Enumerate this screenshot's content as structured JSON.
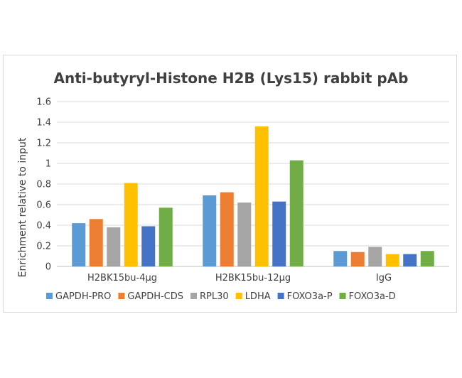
{
  "chart_data": {
    "type": "bar",
    "title": "Anti-butyryl-Histone H2B (Lys15) rabbit pAb",
    "xlabel": "",
    "ylabel": "Enrichment relative to input",
    "ylim": [
      0,
      1.6
    ],
    "yticks": [
      "0",
      "0.2",
      "0.4",
      "0.6",
      "0.8",
      "1",
      "1.2",
      "1.4",
      "1.6"
    ],
    "grid": true,
    "legend_position": "bottom",
    "categories": [
      "H2BK15bu-4μg",
      "H2BK15bu-12μg",
      "IgG"
    ],
    "series": [
      {
        "name": "GAPDH-PRO",
        "color": "#5B9BD5",
        "values": [
          0.42,
          0.69,
          0.15
        ]
      },
      {
        "name": "GAPDH-CDS",
        "color": "#ED7D31",
        "values": [
          0.46,
          0.72,
          0.14
        ]
      },
      {
        "name": "RPL30",
        "color": "#A5A5A5",
        "values": [
          0.38,
          0.62,
          0.19
        ]
      },
      {
        "name": "LDHA",
        "color": "#FFC000",
        "values": [
          0.81,
          1.36,
          0.12
        ]
      },
      {
        "name": "FOXO3a-P",
        "color": "#4472C4",
        "values": [
          0.39,
          0.63,
          0.12
        ]
      },
      {
        "name": "FOXO3a-D",
        "color": "#70AD47",
        "values": [
          0.57,
          1.03,
          0.15
        ]
      }
    ]
  }
}
